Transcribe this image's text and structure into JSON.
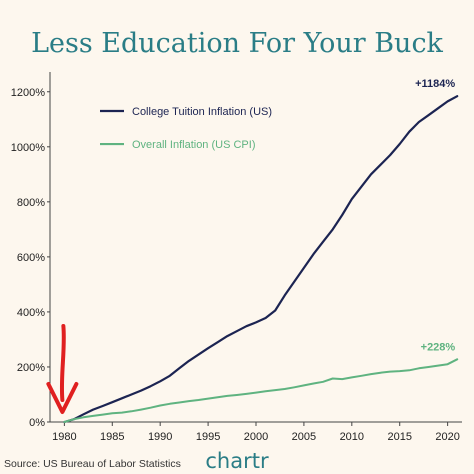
{
  "chart_data": {
    "type": "line",
    "title": "Less Education For Your Buck",
    "xlabel": "",
    "ylabel": "",
    "xlim": [
      1978.5,
      2021.5
    ],
    "ylim": [
      0,
      1250
    ],
    "x_ticks": [
      1980,
      1985,
      1990,
      1995,
      2000,
      2005,
      2010,
      2015,
      2020
    ],
    "x_tick_labels": [
      "1980",
      "1985",
      "1990",
      "1995",
      "2000",
      "2005",
      "2010",
      "2015",
      "2020"
    ],
    "y_ticks": [
      0,
      200,
      400,
      600,
      800,
      1000,
      1200
    ],
    "y_tick_labels": [
      "0%",
      "200%",
      "400%",
      "600%",
      "800%",
      "1000%",
      "1200%"
    ],
    "grid": false,
    "legend_position": "top-left",
    "series": [
      {
        "name": "College Tuition Inflation (US)",
        "color": "#1c2452",
        "end_label": "+1184%",
        "x": [
          1980,
          1981,
          1982,
          1983,
          1984,
          1985,
          1986,
          1987,
          1988,
          1989,
          1990,
          1991,
          1992,
          1993,
          1994,
          1995,
          1996,
          1997,
          1998,
          1999,
          2000,
          2001,
          2002,
          2003,
          2004,
          2005,
          2006,
          2007,
          2008,
          2009,
          2010,
          2011,
          2012,
          2013,
          2014,
          2015,
          2016,
          2017,
          2018,
          2019,
          2020,
          2021
        ],
        "y": [
          0,
          10,
          28,
          45,
          58,
          72,
          86,
          100,
          114,
          130,
          148,
          168,
          195,
          222,
          245,
          268,
          290,
          312,
          330,
          348,
          362,
          378,
          405,
          460,
          510,
          560,
          610,
          655,
          700,
          752,
          810,
          855,
          900,
          935,
          970,
          1010,
          1055,
          1090,
          1115,
          1140,
          1165,
          1184
        ]
      },
      {
        "name": "Overall Inflation (US CPI)",
        "color": "#5fb380",
        "end_label": "+228%",
        "x": [
          1980,
          1981,
          1982,
          1983,
          1984,
          1985,
          1986,
          1987,
          1988,
          1989,
          1990,
          1991,
          1992,
          1993,
          1994,
          1995,
          1996,
          1997,
          1998,
          1999,
          2000,
          2001,
          2002,
          2003,
          2004,
          2005,
          2006,
          2007,
          2008,
          2009,
          2010,
          2011,
          2012,
          2013,
          2014,
          2015,
          2016,
          2017,
          2018,
          2019,
          2020,
          2021
        ],
        "y": [
          0,
          10,
          17,
          22,
          27,
          32,
          34,
          39,
          45,
          52,
          60,
          66,
          71,
          76,
          80,
          85,
          90,
          95,
          98,
          102,
          107,
          112,
          116,
          120,
          126,
          133,
          140,
          146,
          158,
          156,
          162,
          168,
          174,
          179,
          183,
          185,
          188,
          195,
          200,
          205,
          210,
          228
        ]
      }
    ],
    "source": "Source: US Bureau of Labor Statistics",
    "brand": "chartr",
    "annotation": {
      "type": "arrow",
      "color": "#e02020",
      "points_to_x": 1980
    }
  }
}
